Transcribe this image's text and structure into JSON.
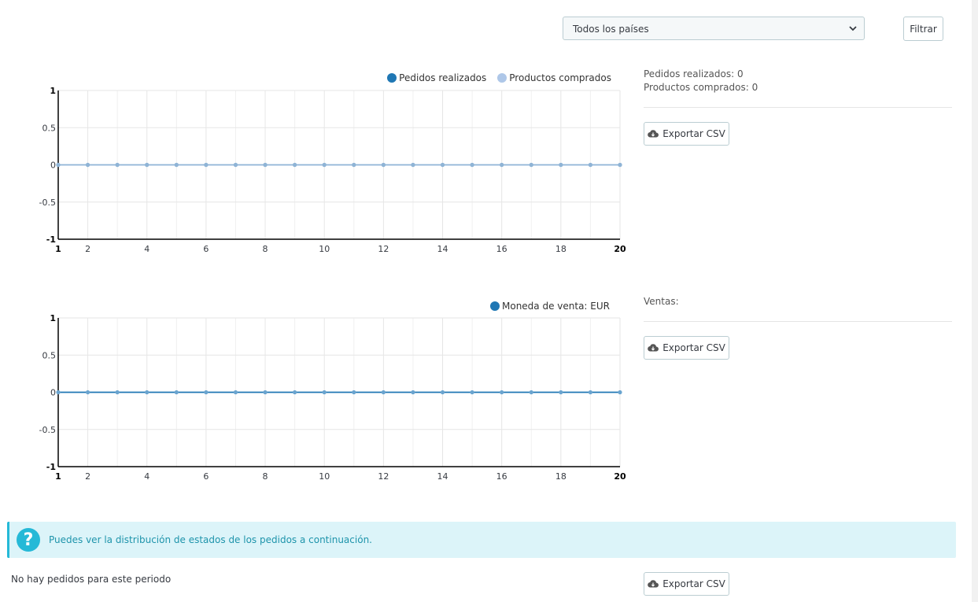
{
  "filter": {
    "country_select": "Todos los países",
    "filter_button": "Filtrar"
  },
  "chart1": {
    "legend": [
      "Pedidos realizados",
      "Productos comprados"
    ],
    "summary": [
      "Pedidos realizados: 0",
      "Productos comprados: 0"
    ],
    "export_button": "Exportar CSV"
  },
  "chart2": {
    "legend": [
      "Moneda de venta: EUR"
    ],
    "summary": [
      "Ventas:"
    ],
    "export_button": "Exportar CSV"
  },
  "alert": {
    "icon": "question-icon",
    "message": "Puedes ver la distribución de estados de los pedidos a continuación."
  },
  "status_section": {
    "empty_message": "No hay pedidos para este periodo",
    "export_button": "Exportar CSV"
  },
  "colors": {
    "series_dark": "#1f77b4",
    "series_light": "#aec7e8",
    "line_combined": "#8fb4d6",
    "alert_bg": "#dcf4f9",
    "alert_accent": "#25b9d7"
  },
  "chart_data": [
    {
      "type": "line",
      "x": [
        1,
        2,
        3,
        4,
        5,
        6,
        7,
        8,
        9,
        10,
        11,
        12,
        13,
        14,
        15,
        16,
        17,
        18,
        19,
        20
      ],
      "series": [
        {
          "name": "Pedidos realizados",
          "values": [
            0,
            0,
            0,
            0,
            0,
            0,
            0,
            0,
            0,
            0,
            0,
            0,
            0,
            0,
            0,
            0,
            0,
            0,
            0,
            0
          ]
        },
        {
          "name": "Productos comprados",
          "values": [
            0,
            0,
            0,
            0,
            0,
            0,
            0,
            0,
            0,
            0,
            0,
            0,
            0,
            0,
            0,
            0,
            0,
            0,
            0,
            0
          ]
        }
      ],
      "xticks": [
        "1",
        "2",
        "4",
        "6",
        "8",
        "10",
        "12",
        "14",
        "16",
        "18",
        "20"
      ],
      "yticks": [
        "1",
        "0.5",
        "0",
        "-0.5",
        "-1"
      ],
      "ylim": [
        -1,
        1
      ],
      "xlim": [
        1,
        20
      ],
      "grid": true,
      "legend": "top-right"
    },
    {
      "type": "line",
      "x": [
        1,
        2,
        3,
        4,
        5,
        6,
        7,
        8,
        9,
        10,
        11,
        12,
        13,
        14,
        15,
        16,
        17,
        18,
        19,
        20
      ],
      "series": [
        {
          "name": "Moneda de venta: EUR",
          "values": [
            0,
            0,
            0,
            0,
            0,
            0,
            0,
            0,
            0,
            0,
            0,
            0,
            0,
            0,
            0,
            0,
            0,
            0,
            0,
            0
          ]
        }
      ],
      "xticks": [
        "1",
        "2",
        "4",
        "6",
        "8",
        "10",
        "12",
        "14",
        "16",
        "18",
        "20"
      ],
      "yticks": [
        "1",
        "0.5",
        "0",
        "-0.5",
        "-1"
      ],
      "ylim": [
        -1,
        1
      ],
      "xlim": [
        1,
        20
      ],
      "grid": true,
      "legend": "top-right"
    }
  ]
}
